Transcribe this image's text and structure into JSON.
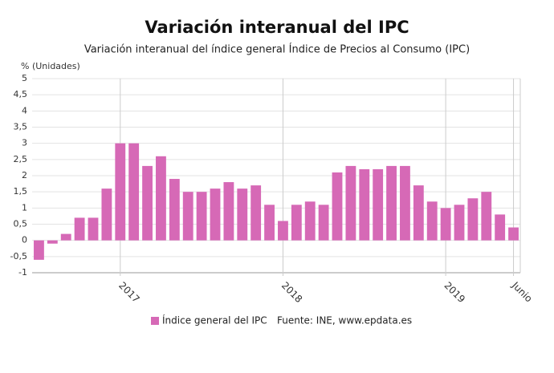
{
  "chart_data": {
    "type": "bar",
    "title": "Variación interanual del IPC",
    "subtitle": "Variación interanual del índice general Índice de Precios al Consumo (IPC)",
    "y_label": "% (Unidades)",
    "source": "Fuente: INE, www.epdata.es",
    "categories": [
      null,
      null,
      null,
      null,
      null,
      null,
      "2017",
      null,
      null,
      null,
      null,
      null,
      null,
      null,
      null,
      null,
      null,
      null,
      "2018",
      null,
      null,
      null,
      null,
      null,
      null,
      null,
      null,
      null,
      null,
      null,
      "2019",
      null,
      null,
      null,
      null,
      "Junio"
    ],
    "series": [
      {
        "name": "Índice general del IPC",
        "color": "#d669b6",
        "values": [
          -0.6,
          -0.1,
          0.2,
          0.7,
          0.7,
          1.6,
          3.0,
          3.0,
          2.3,
          2.6,
          1.9,
          1.5,
          1.5,
          1.6,
          1.8,
          1.6,
          1.7,
          1.1,
          0.6,
          1.1,
          1.2,
          1.1,
          2.1,
          2.3,
          2.2,
          2.2,
          2.3,
          2.3,
          1.7,
          1.2,
          1.0,
          1.1,
          1.3,
          1.5,
          0.8,
          0.4
        ]
      }
    ],
    "ylim": [
      -1,
      5
    ],
    "yticks": [
      {
        "value": -1,
        "label": "-1"
      },
      {
        "value": -0.5,
        "label": "-0,5"
      },
      0,
      {
        "value": 0.5,
        "label": "0,5"
      },
      1,
      {
        "value": 1.5,
        "label": "1,5"
      },
      2,
      {
        "value": 2.5,
        "label": "2,5"
      },
      3,
      {
        "value": 3.5,
        "label": "3,5"
      },
      4,
      {
        "value": 4.5,
        "label": "4,5"
      },
      5
    ],
    "grid": true
  }
}
